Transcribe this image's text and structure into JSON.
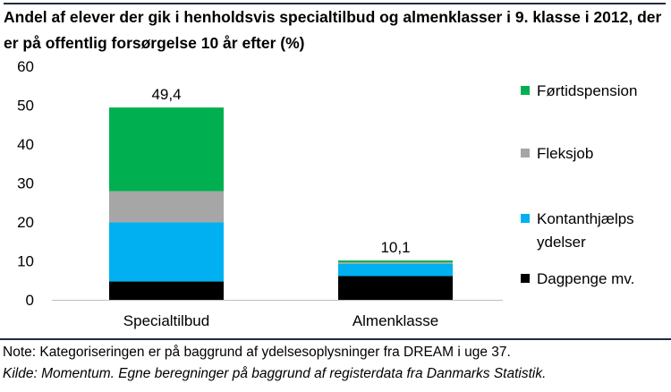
{
  "chart_data": {
    "type": "bar",
    "stacked": true,
    "title": "Andel af elever der gik i henholdsvis specialtilbud og almenklasser i 9. klasse i 2012, der er på offentlig forsørgelse 10 år efter (%)",
    "xlabel": "",
    "ylabel": "",
    "ylim": [
      0,
      60
    ],
    "yticks": [
      "0",
      "10",
      "20",
      "30",
      "40",
      "50",
      "60"
    ],
    "grid": false,
    "legend_position": "right",
    "categories": [
      "Specialtilbud",
      "Almenklasse"
    ],
    "totals": [
      "49,4",
      "10,1"
    ],
    "series": [
      {
        "name": "Dagpenge mv.",
        "color": "#000000",
        "values": [
          4.7,
          6.1
        ]
      },
      {
        "name": "Kontanthjælps ydelser",
        "color": "#00b0f0",
        "values": [
          15.2,
          3.1
        ]
      },
      {
        "name": "Fleksjob",
        "color": "#a6a6a6",
        "values": [
          8.0,
          0.4
        ]
      },
      {
        "name": "Førtidspension",
        "color": "#00b050",
        "values": [
          21.5,
          0.5
        ]
      }
    ]
  },
  "notes": {
    "note": "Note: Kategoriseringen er på baggrund af ydelsesoplysninger fra DREAM i uge 37.",
    "source": "Kilde: Momentum. Egne beregninger på baggrund af registerdata fra Danmarks Statistik."
  }
}
